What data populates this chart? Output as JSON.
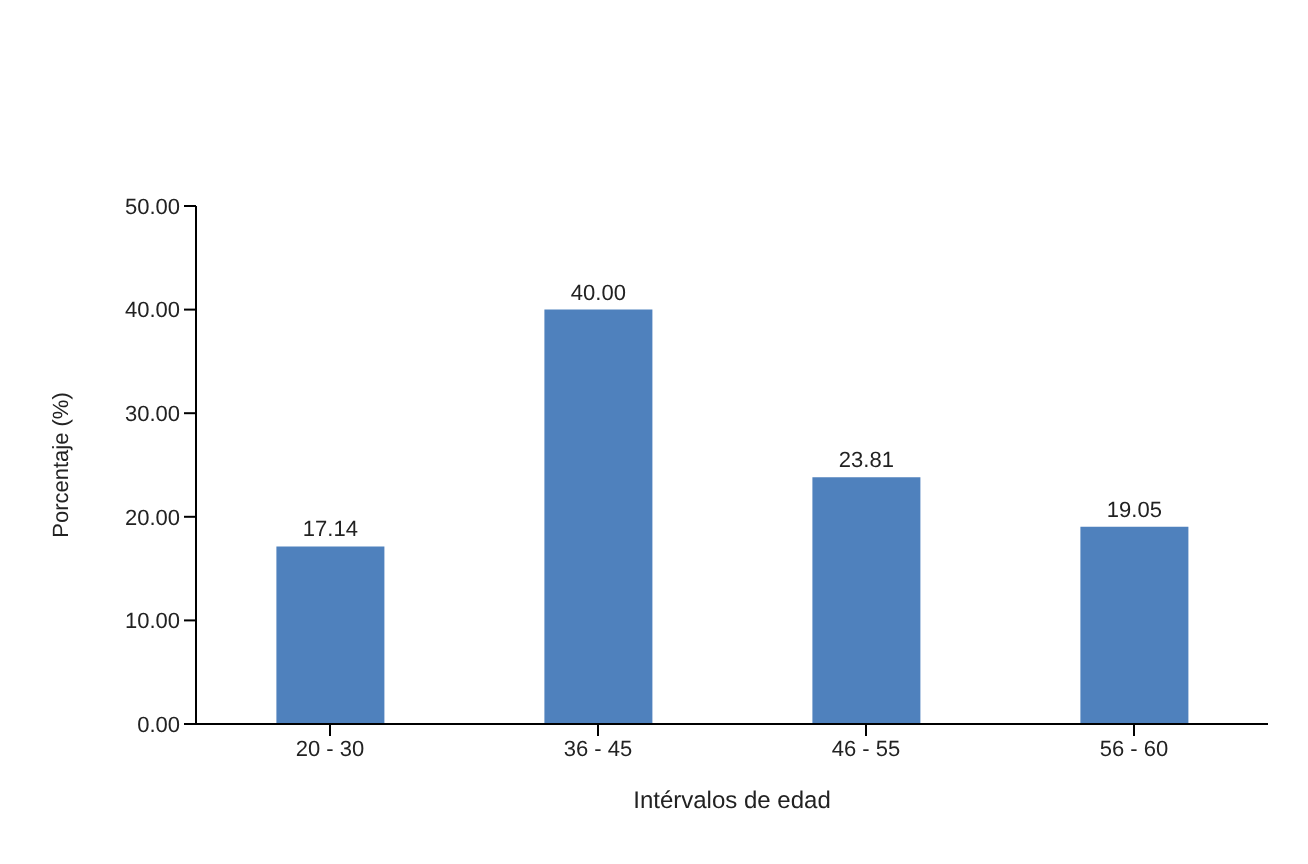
{
  "chart_data": {
    "type": "bar",
    "xlabel": "Intérvalos de edad",
    "ylabel": "Porcentaje (%)",
    "categories": [
      "20 - 30",
      "36 - 45",
      "46 - 55",
      "56 - 60"
    ],
    "values": [
      17.14,
      40.0,
      23.81,
      19.05
    ],
    "value_labels": [
      "17.14",
      "40.00",
      "23.81",
      "19.05"
    ],
    "color": "#4f81bd",
    "ylim": [
      0,
      50
    ],
    "yticks": [
      {
        "value": 0,
        "label": "0.00"
      },
      {
        "value": 10,
        "label": "10.00"
      },
      {
        "value": 20,
        "label": "20.00"
      },
      {
        "value": 30,
        "label": "30.00"
      },
      {
        "value": 40,
        "label": "40.00"
      },
      {
        "value": 50,
        "label": "50.00"
      }
    ],
    "grid": false
  }
}
